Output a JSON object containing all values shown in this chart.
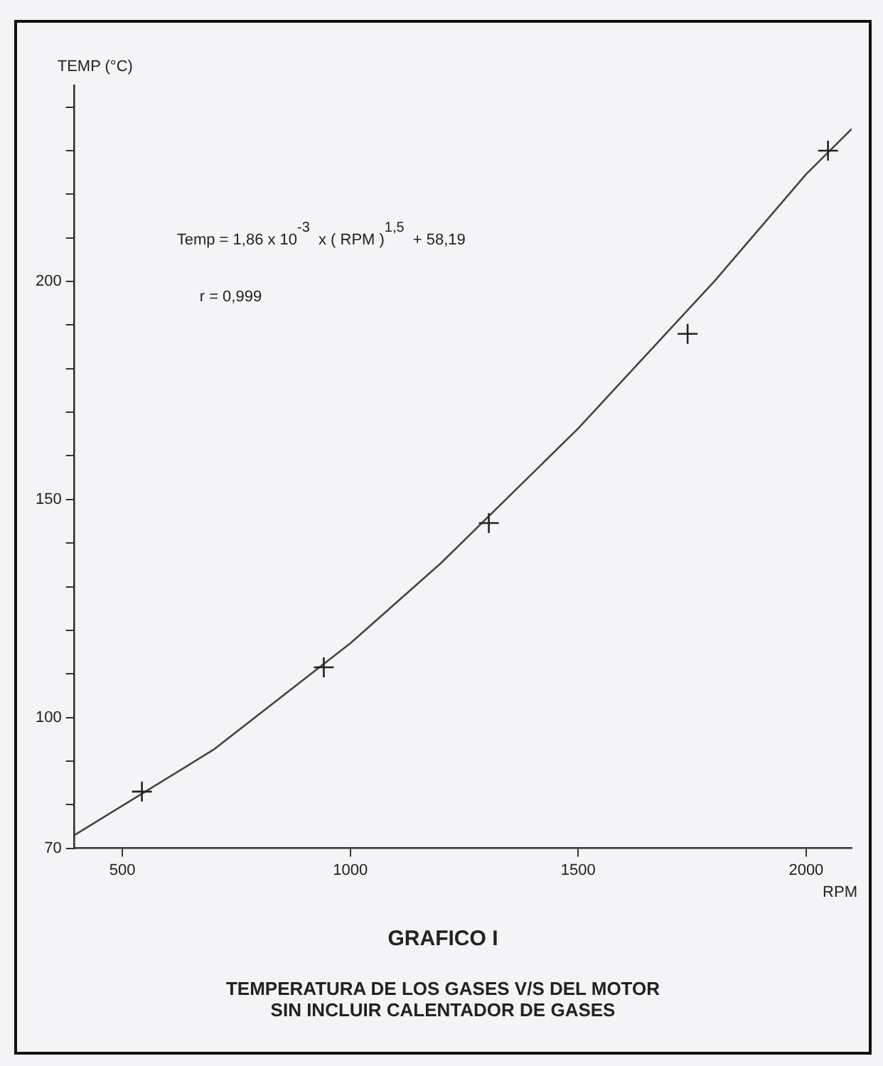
{
  "chart_data": {
    "type": "scatter",
    "title": "GRAFICO I",
    "subtitle": "TEMPERATURA DE LOS GASES V/S DEL MOTOR\nSIN INCLUIR CALENTADOR DE GASES",
    "xlabel": "RPM",
    "ylabel": "TEMP (°C)",
    "annotations": [
      "Temp = 1,86 x 10$^{-3}$ x ( RPM )$^{1,5}$ + 58,19",
      "r = 0,999"
    ],
    "series": [
      {
        "type": "scatter",
        "color": "#222222",
        "marker": "cross",
        "x": [
          543,
          942,
          1304,
          1740,
          2048
        ],
        "values": [
          83,
          111.5,
          144.6,
          188,
          230
        ]
      },
      {
        "type": "line",
        "color": "#444444",
        "marker": "none",
        "line_style": "solid",
        "x": [
          395,
          700,
          1000,
          1200,
          1500,
          1800,
          2000,
          2100
        ],
        "values": [
          73,
          92.6,
          117,
          135.5,
          166.3,
          200.2,
          224.6,
          235
        ]
      }
    ],
    "xlim": [
      395,
      2100
    ],
    "xticks": [
      500,
      1000,
      1500,
      2000
    ],
    "ylim": [
      70,
      245
    ],
    "yticks": [
      70,
      {
        "value": 80,
        "label": null
      },
      {
        "value": 90,
        "label": null
      },
      100,
      {
        "value": 110,
        "label": null
      },
      {
        "value": 120,
        "label": null
      },
      {
        "value": 130,
        "label": null
      },
      {
        "value": 140,
        "label": null
      },
      150,
      {
        "value": 160,
        "label": null
      },
      {
        "value": 170,
        "label": null
      },
      {
        "value": 180,
        "label": null
      },
      {
        "value": 190,
        "label": null
      },
      200,
      {
        "value": 210,
        "label": null
      },
      {
        "value": 220,
        "label": null
      },
      {
        "value": 230,
        "label": null
      },
      {
        "value": 240,
        "label": null
      }
    ],
    "grid": false,
    "legend": false
  }
}
